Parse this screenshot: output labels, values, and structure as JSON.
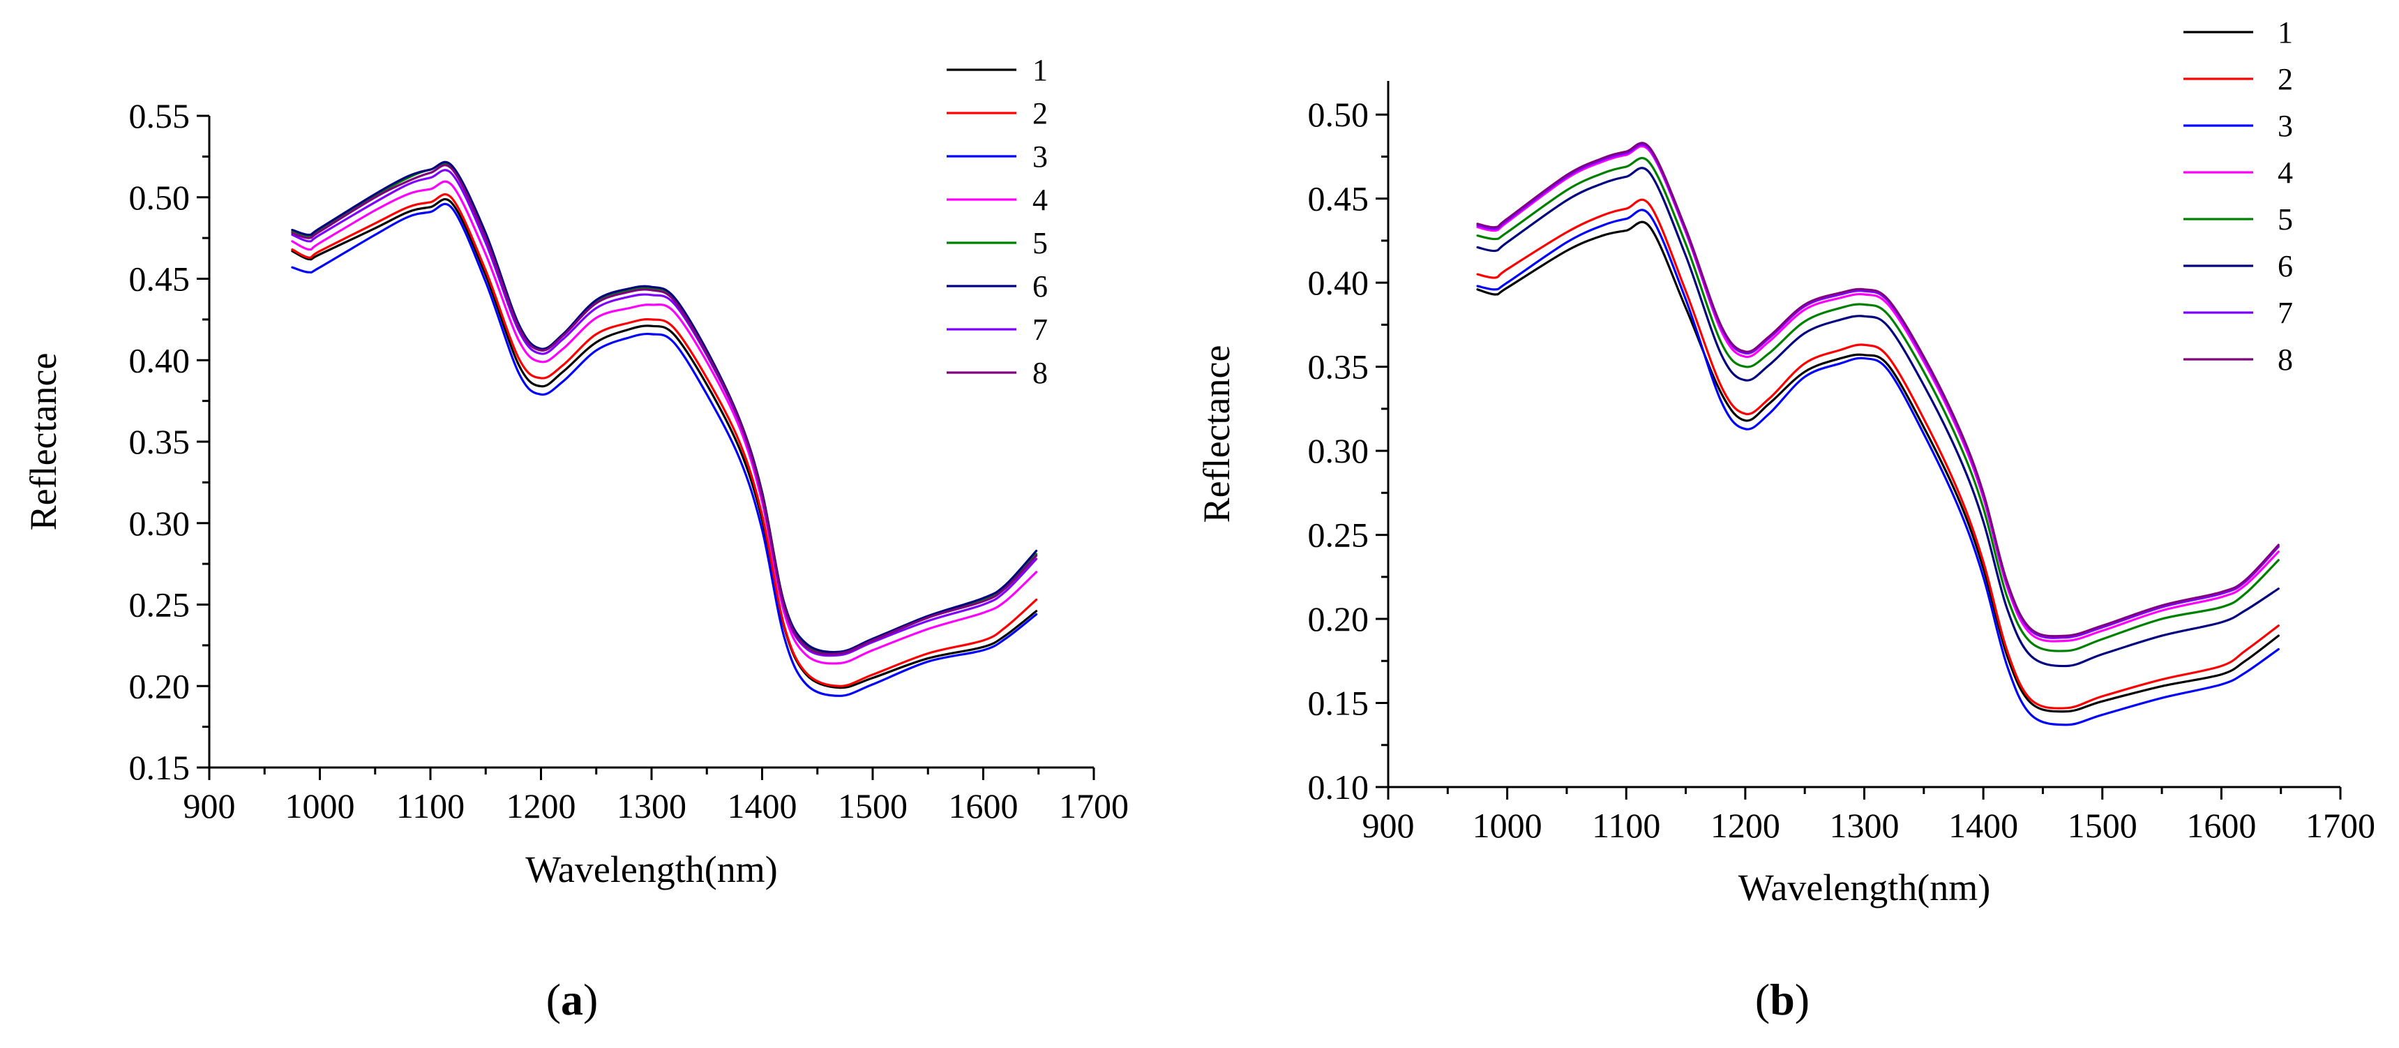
{
  "chart_data": [
    {
      "type": "line",
      "panel_label": "a",
      "title": "",
      "xlabel": "Wavelength(nm)",
      "ylabel": "Reflectance",
      "xlim": [
        900,
        1700
      ],
      "ylim": [
        0.15,
        0.55
      ],
      "xticks": [
        900,
        1000,
        1100,
        1200,
        1300,
        1400,
        1500,
        1600,
        1700
      ],
      "yticks": [
        0.15,
        0.2,
        0.25,
        0.3,
        0.35,
        0.4,
        0.45,
        0.5,
        0.55
      ],
      "xtick_labels": [
        "900",
        "1000",
        "1100",
        "1200",
        "1300",
        "1400",
        "1500",
        "1600",
        "1700"
      ],
      "ytick_labels": [
        "0.15",
        "0.20",
        "0.25",
        "0.30",
        "0.35",
        "0.40",
        "0.45",
        "0.50",
        "0.55"
      ],
      "legend_position": "top-right",
      "x": [
        975,
        990,
        1000,
        1050,
        1080,
        1100,
        1120,
        1150,
        1180,
        1200,
        1220,
        1250,
        1280,
        1300,
        1320,
        1350,
        1380,
        1400,
        1420,
        1440,
        1470,
        1500,
        1550,
        1600,
        1620,
        1648
      ],
      "series": [
        {
          "name": "1",
          "color": "#000000",
          "values": [
            0.467,
            0.462,
            0.465,
            0.481,
            0.491,
            0.494,
            0.496,
            0.452,
            0.397,
            0.384,
            0.393,
            0.411,
            0.419,
            0.421,
            0.416,
            0.385,
            0.345,
            0.302,
            0.236,
            0.207,
            0.199,
            0.205,
            0.217,
            0.224,
            0.231,
            0.246
          ]
        },
        {
          "name": "2",
          "color": "#ff0000",
          "values": [
            0.468,
            0.463,
            0.467,
            0.484,
            0.494,
            0.497,
            0.499,
            0.455,
            0.401,
            0.389,
            0.397,
            0.416,
            0.423,
            0.425,
            0.42,
            0.389,
            0.349,
            0.305,
            0.237,
            0.208,
            0.2,
            0.207,
            0.22,
            0.228,
            0.236,
            0.253
          ]
        },
        {
          "name": "3",
          "color": "#0000ff",
          "values": [
            0.457,
            0.454,
            0.457,
            0.477,
            0.488,
            0.491,
            0.493,
            0.448,
            0.392,
            0.379,
            0.387,
            0.406,
            0.414,
            0.416,
            0.411,
            0.379,
            0.339,
            0.296,
            0.23,
            0.201,
            0.194,
            0.201,
            0.215,
            0.222,
            0.229,
            0.244
          ]
        },
        {
          "name": "4",
          "color": "#ff00ff",
          "values": [
            0.473,
            0.468,
            0.472,
            0.492,
            0.502,
            0.505,
            0.507,
            0.465,
            0.412,
            0.399,
            0.407,
            0.426,
            0.432,
            0.434,
            0.43,
            0.399,
            0.358,
            0.313,
            0.245,
            0.219,
            0.214,
            0.222,
            0.235,
            0.245,
            0.252,
            0.27
          ]
        },
        {
          "name": "5",
          "color": "#008000",
          "values": [
            0.479,
            0.476,
            0.48,
            0.501,
            0.512,
            0.517,
            0.518,
            0.477,
            0.421,
            0.407,
            0.416,
            0.436,
            0.443,
            0.444,
            0.438,
            0.405,
            0.362,
            0.318,
            0.25,
            0.225,
            0.221,
            0.228,
            0.242,
            0.253,
            0.261,
            0.281
          ]
        },
        {
          "name": "6",
          "color": "#000080",
          "values": [
            0.48,
            0.477,
            0.481,
            0.502,
            0.513,
            0.517,
            0.519,
            0.478,
            0.422,
            0.407,
            0.416,
            0.437,
            0.444,
            0.445,
            0.439,
            0.406,
            0.363,
            0.319,
            0.251,
            0.226,
            0.221,
            0.229,
            0.243,
            0.254,
            0.262,
            0.283
          ]
        },
        {
          "name": "7",
          "color": "#8000ff",
          "values": [
            0.477,
            0.473,
            0.477,
            0.497,
            0.508,
            0.512,
            0.514,
            0.472,
            0.418,
            0.404,
            0.413,
            0.432,
            0.439,
            0.44,
            0.435,
            0.403,
            0.361,
            0.316,
            0.248,
            0.223,
            0.219,
            0.227,
            0.24,
            0.25,
            0.258,
            0.278
          ]
        },
        {
          "name": "8",
          "color": "#800080",
          "values": [
            0.478,
            0.475,
            0.479,
            0.5,
            0.51,
            0.515,
            0.517,
            0.475,
            0.42,
            0.406,
            0.415,
            0.435,
            0.442,
            0.443,
            0.437,
            0.404,
            0.362,
            0.317,
            0.249,
            0.224,
            0.22,
            0.228,
            0.242,
            0.252,
            0.26,
            0.28
          ]
        }
      ]
    },
    {
      "type": "line",
      "panel_label": "b",
      "title": "",
      "xlabel": "Wavelength(nm)",
      "ylabel": "Reflectance",
      "xlim": [
        900,
        1700
      ],
      "ylim": [
        0.1,
        0.52
      ],
      "xticks": [
        900,
        1000,
        1100,
        1200,
        1300,
        1400,
        1500,
        1600,
        1700
      ],
      "yticks": [
        0.1,
        0.15,
        0.2,
        0.25,
        0.3,
        0.35,
        0.4,
        0.45,
        0.5
      ],
      "xtick_labels": [
        "900",
        "1000",
        "1100",
        "1200",
        "1300",
        "1400",
        "1500",
        "1600",
        "1700"
      ],
      "ytick_labels": [
        "0.10",
        "0.15",
        "0.20",
        "0.25",
        "0.30",
        "0.35",
        "0.40",
        "0.45",
        "0.50"
      ],
      "legend_position": "top-right",
      "x": [
        975,
        990,
        1000,
        1050,
        1080,
        1100,
        1120,
        1150,
        1180,
        1200,
        1220,
        1250,
        1280,
        1300,
        1320,
        1350,
        1380,
        1400,
        1420,
        1440,
        1470,
        1500,
        1550,
        1600,
        1620,
        1648
      ],
      "series": [
        {
          "name": "1",
          "color": "#000000",
          "values": [
            0.396,
            0.393,
            0.397,
            0.419,
            0.428,
            0.431,
            0.433,
            0.385,
            0.334,
            0.318,
            0.328,
            0.347,
            0.355,
            0.357,
            0.351,
            0.314,
            0.27,
            0.23,
            0.178,
            0.15,
            0.145,
            0.151,
            0.16,
            0.167,
            0.175,
            0.19
          ]
        },
        {
          "name": "2",
          "color": "#ff0000",
          "values": [
            0.405,
            0.403,
            0.408,
            0.43,
            0.44,
            0.444,
            0.446,
            0.395,
            0.338,
            0.322,
            0.331,
            0.352,
            0.36,
            0.363,
            0.356,
            0.319,
            0.274,
            0.234,
            0.181,
            0.152,
            0.147,
            0.154,
            0.164,
            0.172,
            0.181,
            0.196
          ]
        },
        {
          "name": "3",
          "color": "#0000ff",
          "values": [
            0.398,
            0.396,
            0.4,
            0.424,
            0.434,
            0.438,
            0.44,
            0.39,
            0.329,
            0.313,
            0.322,
            0.344,
            0.352,
            0.355,
            0.348,
            0.31,
            0.265,
            0.225,
            0.172,
            0.143,
            0.137,
            0.143,
            0.153,
            0.161,
            0.168,
            0.182
          ]
        },
        {
          "name": "4",
          "color": "#ff00ff",
          "values": [
            0.433,
            0.431,
            0.436,
            0.462,
            0.472,
            0.476,
            0.478,
            0.43,
            0.371,
            0.356,
            0.365,
            0.384,
            0.391,
            0.393,
            0.387,
            0.353,
            0.31,
            0.272,
            0.219,
            0.191,
            0.187,
            0.193,
            0.205,
            0.213,
            0.22,
            0.24
          ]
        },
        {
          "name": "5",
          "color": "#008000",
          "values": [
            0.428,
            0.426,
            0.43,
            0.455,
            0.465,
            0.469,
            0.471,
            0.423,
            0.364,
            0.35,
            0.358,
            0.377,
            0.385,
            0.387,
            0.381,
            0.347,
            0.304,
            0.266,
            0.213,
            0.186,
            0.181,
            0.188,
            0.2,
            0.207,
            0.215,
            0.235
          ]
        },
        {
          "name": "6",
          "color": "#000080",
          "values": [
            0.421,
            0.419,
            0.424,
            0.449,
            0.459,
            0.463,
            0.465,
            0.416,
            0.357,
            0.342,
            0.351,
            0.37,
            0.378,
            0.38,
            0.374,
            0.339,
            0.296,
            0.258,
            0.206,
            0.178,
            0.172,
            0.179,
            0.19,
            0.198,
            0.205,
            0.218
          ]
        },
        {
          "name": "7",
          "color": "#8000ff",
          "values": [
            0.434,
            0.432,
            0.437,
            0.463,
            0.473,
            0.477,
            0.479,
            0.431,
            0.373,
            0.358,
            0.367,
            0.386,
            0.393,
            0.395,
            0.389,
            0.355,
            0.312,
            0.274,
            0.221,
            0.193,
            0.189,
            0.195,
            0.207,
            0.215,
            0.222,
            0.243
          ]
        },
        {
          "name": "8",
          "color": "#800080",
          "values": [
            0.435,
            0.433,
            0.438,
            0.464,
            0.474,
            0.478,
            0.48,
            0.432,
            0.374,
            0.359,
            0.368,
            0.387,
            0.394,
            0.396,
            0.39,
            0.356,
            0.313,
            0.275,
            0.222,
            0.194,
            0.19,
            0.196,
            0.208,
            0.216,
            0.223,
            0.244
          ]
        }
      ]
    }
  ]
}
